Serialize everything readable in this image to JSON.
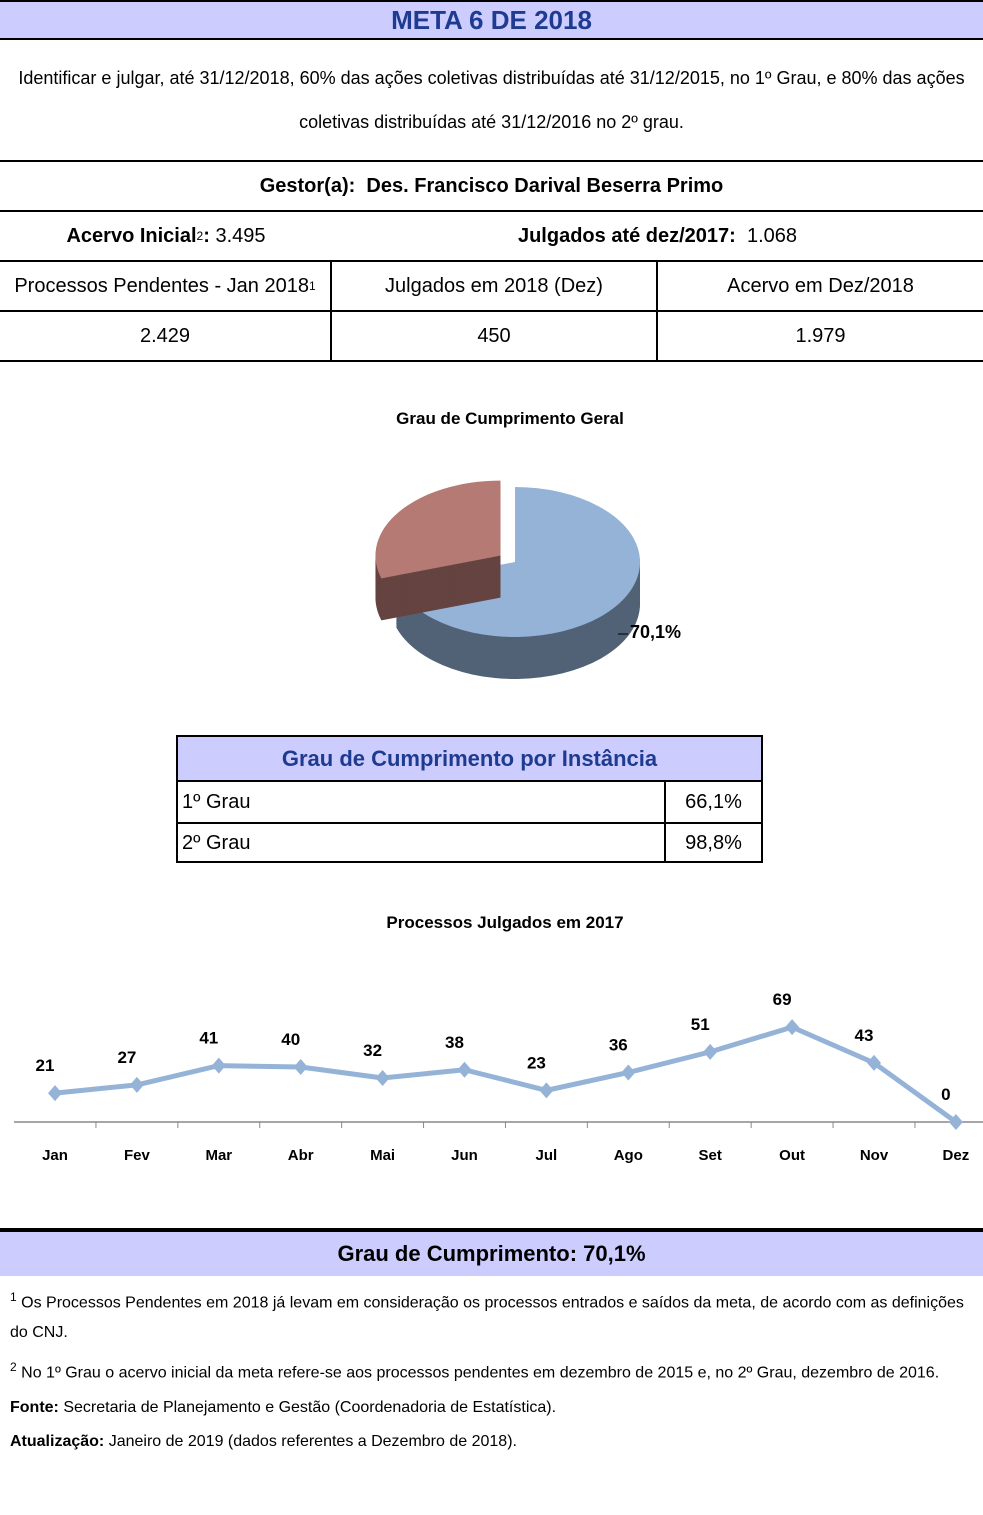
{
  "header": {
    "title": "META 6 DE 2018"
  },
  "description": "Identificar e julgar, até 31/12/2018, 60% das ações coletivas distribuídas até 31/12/2015, no 1º Grau, e 80% das ações coletivas distribuídas até 31/12/2016 no 2º grau.",
  "manager": {
    "label": "Gestor(a):",
    "name": "Des. Francisco Darival Beserra Primo"
  },
  "summary": {
    "initial": {
      "label": "Acervo Inicial",
      "note": "2",
      "separator": ":",
      "value": "3.495"
    },
    "judged": {
      "label": "Julgados até dez/2017:",
      "value": "1.068"
    }
  },
  "table": {
    "headers": [
      "Processos Pendentes - Jan 2018",
      "Julgados em 2018 (Dez)",
      "Acervo em Dez/2018"
    ],
    "header_note": "1",
    "row": [
      "2.429",
      "450",
      "1.979"
    ]
  },
  "instance_table": {
    "title": "Grau de Cumprimento por Instância",
    "rows": [
      [
        "1º Grau",
        "66,1%"
      ],
      [
        "2º Grau",
        "98,8%"
      ]
    ]
  },
  "chart_data": [
    {
      "type": "pie",
      "title": "Grau de Cumprimento Geral",
      "values": [
        70.1,
        29.9
      ],
      "value_labels": [
        "70,1%",
        null
      ],
      "colors": [
        "#95b3d7",
        "#b67a74"
      ]
    },
    {
      "type": "line",
      "title": "Processos Julgados em 2017",
      "categories": [
        "Jan",
        "Fev",
        "Mar",
        "Abr",
        "Mai",
        "Jun",
        "Jul",
        "Ago",
        "Set",
        "Out",
        "Nov",
        "Dez"
      ],
      "values": [
        21,
        27,
        41,
        40,
        32,
        38,
        23,
        36,
        51,
        69,
        43,
        0
      ],
      "color": "#95b3d7",
      "ylim": [
        0,
        80
      ]
    }
  ],
  "footer": {
    "text": "Grau de Cumprimento: 70,1%"
  },
  "notes": [
    {
      "mark": "1",
      "text": "Os Processos Pendentes em 2018 já levam em consideração os processos entrados e saídos da meta, de acordo com as definições do CNJ."
    },
    {
      "mark": "2",
      "text": "No 1º Grau o acervo inicial da meta refere-se aos processos pendentes em dezembro de 2015 e, no 2º Grau, dezembro de 2016."
    }
  ],
  "source": {
    "label": "Fonte:",
    "text": "Secretaria de Planejamento e Gestão (Coordenadoria  de Estatística)."
  },
  "update": {
    "label": "Atualização:",
    "text": "Janeiro de 2019 (dados referentes a Dezembro de 2018)."
  }
}
